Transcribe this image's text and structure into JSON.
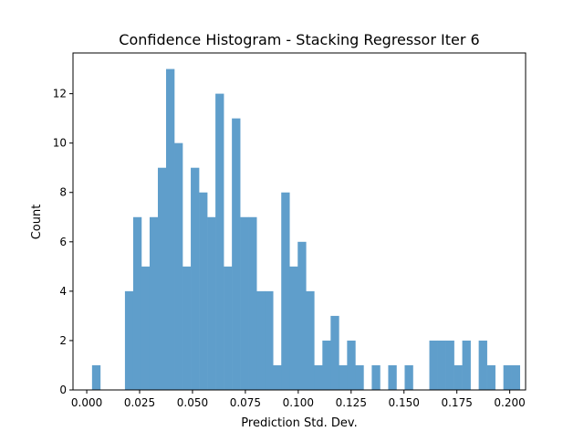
{
  "chart_data": {
    "type": "bar",
    "title": "Confidence Histogram - Stacking Regressor Iter 6",
    "xlabel": "Prediction Std. Dev.",
    "ylabel": "Count",
    "xlim": [
      -0.0065,
      0.2075
    ],
    "ylim": [
      0,
      13.65
    ],
    "xticks": [
      "0.000",
      "0.025",
      "0.050",
      "0.075",
      "0.100",
      "0.125",
      "0.150",
      "0.175",
      "0.200"
    ],
    "xtick_values": [
      0.0,
      0.025,
      0.05,
      0.075,
      0.1,
      0.125,
      0.15,
      0.175,
      0.2
    ],
    "yticks": [
      "0",
      "2",
      "4",
      "6",
      "8",
      "10",
      "12"
    ],
    "ytick_values": [
      0,
      2,
      4,
      6,
      8,
      10,
      12
    ],
    "bar_color": "#5f9ecb",
    "bin_start": 0.0025,
    "bin_width": 0.00389,
    "values": [
      1,
      0,
      0,
      0,
      4,
      7,
      5,
      7,
      9,
      13,
      10,
      5,
      9,
      8,
      7,
      12,
      5,
      11,
      7,
      7,
      4,
      4,
      1,
      8,
      5,
      6,
      4,
      1,
      2,
      3,
      1,
      2,
      1,
      0,
      1,
      0,
      1,
      0,
      1,
      0,
      0,
      2,
      2,
      2,
      1,
      2,
      0,
      2,
      1,
      0,
      1,
      1
    ],
    "grid": false,
    "legend": "none"
  }
}
